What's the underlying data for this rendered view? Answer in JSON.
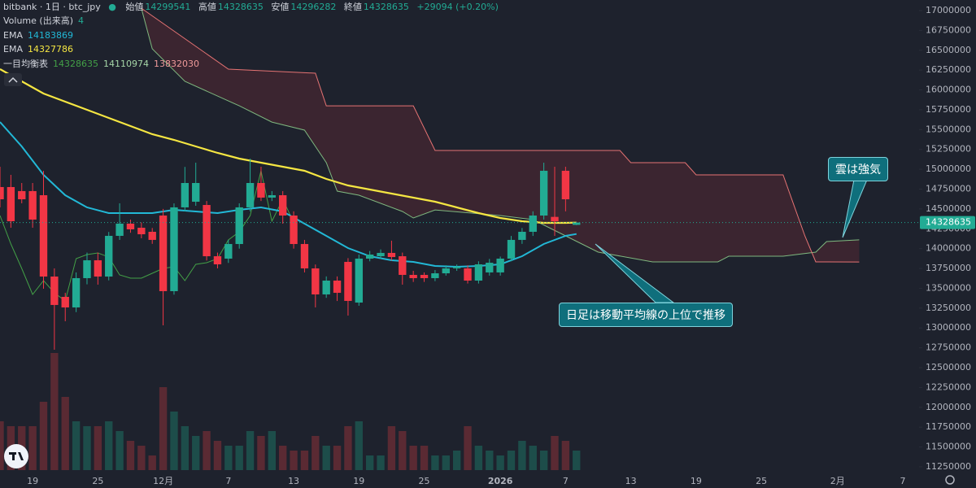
{
  "chart_data": {
    "type": "candlestick",
    "title": "bitbank · 1日 · btc_jpy",
    "ohlc_labels": [
      "始値",
      "高値",
      "安値",
      "終値"
    ],
    "change": "+29094 (+0.20%)",
    "up_color": "#22ab94",
    "down_color": "#f23645",
    "xlim": [
      0,
      84.5
    ],
    "ylim": [
      11137000,
      17133250
    ],
    "xticks": [
      {
        "value": 3,
        "label": "19"
      },
      {
        "value": 9,
        "label": "25"
      },
      {
        "value": 15,
        "label": "12月"
      },
      {
        "value": 21,
        "label": "7"
      },
      {
        "value": 27,
        "label": "13"
      },
      {
        "value": 33,
        "label": "19"
      },
      {
        "value": 39,
        "label": "25"
      },
      {
        "value": 46,
        "label": "2026"
      },
      {
        "value": 52,
        "label": "7"
      },
      {
        "value": 58,
        "label": "13"
      },
      {
        "value": 64,
        "label": "19"
      },
      {
        "value": 70,
        "label": "25"
      },
      {
        "value": 77,
        "label": "2月"
      },
      {
        "value": 83,
        "label": "7"
      }
    ],
    "yticks": [
      11250000,
      11500000,
      11750000,
      12000000,
      12250000,
      12500000,
      12750000,
      13000000,
      13250000,
      13500000,
      13750000,
      14000000,
      14250000,
      14500000,
      14750000,
      15000000,
      15250000,
      15500000,
      15750000,
      16000000,
      16250000,
      16500000,
      16750000,
      17000000
    ],
    "candles": [
      [
        14776000,
        15032000,
        14520000,
        14622000
      ],
      [
        14776000,
        14930000,
        14263000,
        14345000
      ],
      [
        14725000,
        14827000,
        14571000,
        14622000
      ],
      [
        14725000,
        14827000,
        14263000,
        14366000
      ],
      [
        14673000,
        14981000,
        13494000,
        13648000
      ],
      [
        13648000,
        13751000,
        12726000,
        13290000
      ],
      [
        13392000,
        13443000,
        13085000,
        13259000
      ],
      [
        13259000,
        13700000,
        13200000,
        13628000
      ],
      [
        13628000,
        13950000,
        13550000,
        13853000
      ],
      [
        13853000,
        13950000,
        13546000,
        13648000
      ],
      [
        13648000,
        14210000,
        13600000,
        14161000
      ],
      [
        14161000,
        14571000,
        14110000,
        14315000
      ],
      [
        14315000,
        14366000,
        14200000,
        14243000
      ],
      [
        14263000,
        14330000,
        14130000,
        14181000
      ],
      [
        14212000,
        14260000,
        14060000,
        14110000
      ],
      [
        14417000,
        14500000,
        13033000,
        13464000
      ],
      [
        13464000,
        14570000,
        13420000,
        14520000
      ],
      [
        14520000,
        15030000,
        14470000,
        14827000
      ],
      [
        14591000,
        15083000,
        14540000,
        14827000
      ],
      [
        14550000,
        14600000,
        13850000,
        13904000
      ],
      [
        13904000,
        13950000,
        13751000,
        13802000
      ],
      [
        13874000,
        14110000,
        13820000,
        14058000
      ],
      [
        14058000,
        14571000,
        14000000,
        14520000
      ],
      [
        14520000,
        15134000,
        14470000,
        14827000
      ],
      [
        14827000,
        15032000,
        14600000,
        14643000
      ],
      [
        14643000,
        14725000,
        14600000,
        14673000
      ],
      [
        14673000,
        14725000,
        14314000,
        14417000
      ],
      [
        14417000,
        14470000,
        14000000,
        14058000
      ],
      [
        14058000,
        14110000,
        13700000,
        13751000
      ],
      [
        13751000,
        13800000,
        13259000,
        13423000
      ],
      [
        13423000,
        13650000,
        13380000,
        13597000
      ],
      [
        13597000,
        13650000,
        13340000,
        13443000
      ],
      [
        13833000,
        13880000,
        13156000,
        13341000
      ],
      [
        13320000,
        13925000,
        13280000,
        13874000
      ],
      [
        13874000,
        13970000,
        13840000,
        13925000
      ],
      [
        13904000,
        13990000,
        13870000,
        13946000
      ],
      [
        13946000,
        14100000,
        13850000,
        13894000
      ],
      [
        13904000,
        13950000,
        13546000,
        13669000
      ],
      [
        13669000,
        13720000,
        13580000,
        13628000
      ],
      [
        13669000,
        13700000,
        13580000,
        13628000
      ],
      [
        13628000,
        13730000,
        13590000,
        13689000
      ],
      [
        13689000,
        13790000,
        13660000,
        13751000
      ],
      [
        13751000,
        13800000,
        13720000,
        13771000
      ],
      [
        13751000,
        13790000,
        13560000,
        13597000
      ],
      [
        13597000,
        13840000,
        13560000,
        13802000
      ],
      [
        13700000,
        13870000,
        13660000,
        13822000
      ],
      [
        13700000,
        13900000,
        13660000,
        13874000
      ],
      [
        13874000,
        14160000,
        13840000,
        14110000
      ],
      [
        14110000,
        14260000,
        14060000,
        14212000
      ],
      [
        14212000,
        14470000,
        14160000,
        14417000
      ],
      [
        14417000,
        15083000,
        14366000,
        14981000
      ],
      [
        14400000,
        15032000,
        14160000,
        14345000
      ],
      [
        14981000,
        15032000,
        14470000,
        14622000
      ],
      [
        14299541,
        14328635,
        14296282,
        14328635
      ]
    ],
    "volume": {
      "name": "Volume (出来高)",
      "ylim": [
        0,
        25
      ],
      "up_color": "#1d4d4a",
      "down_color": "#5a2a33",
      "values": [
        10,
        9,
        9,
        9,
        14,
        24,
        15,
        10,
        9,
        9,
        10,
        8,
        6,
        5,
        3,
        17,
        12,
        9,
        7,
        8,
        6,
        5,
        5,
        8,
        7,
        8,
        5,
        4,
        4,
        7,
        5,
        5,
        9,
        10,
        3,
        3,
        9,
        8,
        5,
        5,
        3,
        3,
        4,
        9,
        5,
        4,
        3,
        4,
        6,
        5,
        4,
        7,
        6,
        4
      ]
    },
    "series": [
      {
        "name": "EMA",
        "color": "#22b8d6",
        "x": [
          0,
          2,
          4,
          6,
          8,
          10,
          12,
          14,
          16,
          18,
          20,
          22,
          24,
          26,
          28,
          30,
          32,
          34,
          36,
          38,
          40,
          42,
          44,
          46,
          48,
          50,
          52,
          53
        ],
        "values": [
          15595750,
          15288250,
          14929500,
          14673250,
          14519500,
          14447750,
          14447750,
          14447750,
          14488750,
          14468250,
          14447750,
          14488750,
          14519500,
          14468250,
          14314500,
          14160750,
          14007000,
          13904500,
          13853250,
          13832750,
          13781500,
          13771250,
          13781500,
          13802000,
          13904500,
          14058250,
          14160750,
          14183869
        ]
      },
      {
        "name": "EMA",
        "color": "#f5e642",
        "x": [
          0,
          2,
          4,
          6,
          8,
          10,
          12,
          14,
          16,
          18,
          20,
          22,
          24,
          26,
          28,
          30,
          32,
          34,
          36,
          38,
          40,
          42,
          44,
          46,
          48,
          50,
          52,
          53
        ],
        "values": [
          16262000,
          16108250,
          15954500,
          15852000,
          15749500,
          15647000,
          15544500,
          15442000,
          15370250,
          15288250,
          15206250,
          15134500,
          15083250,
          15032000,
          14980750,
          14878250,
          14796250,
          14745000,
          14693750,
          14642500,
          14591250,
          14519500,
          14447750,
          14386250,
          14345250,
          14324750,
          14324750,
          14327786
        ]
      }
    ],
    "ichimoku": {
      "name": "一目均衡表",
      "cloud_color": "rgba(242,54,69,0.14)",
      "lagging": {
        "color": "#43a047",
        "x": [
          0,
          1,
          2,
          3,
          4,
          5,
          6,
          7,
          8,
          9,
          10,
          11,
          12,
          13,
          14,
          15,
          16,
          17,
          18,
          19,
          20,
          21,
          22,
          23,
          24,
          25,
          26,
          27
        ],
        "values": [
          14417000,
          14058000,
          13751000,
          13423000,
          13597000,
          13443000,
          13341000,
          13874000,
          13925000,
          13946000,
          13894000,
          13669000,
          13628000,
          13628000,
          13689000,
          13751000,
          13771000,
          13597000,
          13802000,
          13822000,
          13874000,
          14110000,
          14212000,
          14417000,
          14981000,
          14345000,
          14622000,
          14328635
        ]
      },
      "span_a": {
        "color": "#7fb87f",
        "x": [
          13,
          14,
          17,
          22,
          25,
          28,
          30,
          31,
          33,
          37,
          38,
          40,
          46,
          49,
          52,
          55,
          60,
          66,
          67,
          72,
          75,
          76,
          79
        ],
        "values": [
          17030000,
          16518000,
          16108000,
          15800000,
          15595000,
          15493000,
          15083000,
          14724000,
          14673000,
          14468000,
          14386000,
          14488000,
          14417000,
          14366000,
          14161000,
          13956000,
          13833000,
          13833000,
          13904000,
          13904000,
          13956000,
          14089000,
          14110974
        ]
      },
      "span_b": {
        "color": "#e57373",
        "x": [
          13,
          21,
          29,
          30,
          38,
          40,
          57,
          58,
          63,
          64,
          72,
          74,
          75,
          79
        ],
        "values": [
          17030000,
          16262000,
          16211000,
          15800000,
          15800000,
          15237000,
          15237000,
          15083000,
          15083000,
          14930000,
          14930000,
          14161000,
          13833000,
          13832030
        ]
      }
    },
    "annotations": [
      "雲は強気",
      "日足は移動平均線の上位で推移"
    ]
  }
}
